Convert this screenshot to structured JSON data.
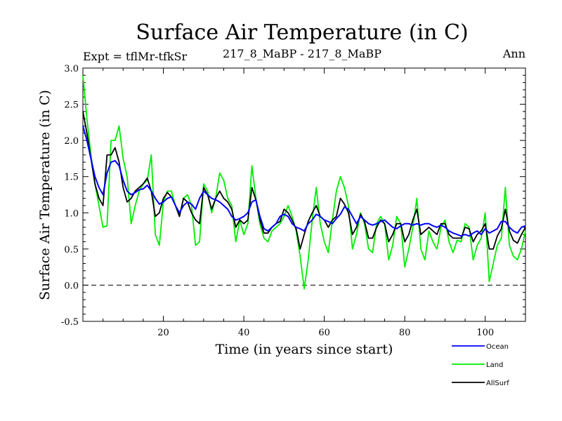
{
  "header": {
    "title": "Surface Air Temperature (in C)",
    "experiment": "Expt = tflMr-tfkSr",
    "subtitle": "217_8_MaBP - 217_8_MaBP",
    "period": "Ann"
  },
  "chart_data": {
    "type": "line",
    "title": "Surface Air Temperature (in C)",
    "xlabel": "Time (in years since start)",
    "ylabel": "Surface Air Temperature (in C)",
    "xlim": [
      0,
      110
    ],
    "ylim": [
      -0.5,
      3.0
    ],
    "xticks": [
      20,
      40,
      60,
      80,
      100
    ],
    "xtick_labels": [
      "20",
      "40",
      "60",
      "80",
      "100"
    ],
    "yticks": [
      -0.5,
      0.0,
      0.5,
      1.0,
      1.5,
      2.0,
      2.5,
      3.0
    ],
    "ytick_labels": [
      "-0.5",
      "0.0",
      "0.5",
      "1.0",
      "1.5",
      "2.0",
      "2.5",
      "3.0"
    ],
    "reference_line": 0.0,
    "legend_position": "bottom-right",
    "x": [
      0,
      1,
      2,
      3,
      4,
      5,
      6,
      7,
      8,
      9,
      10,
      11,
      12,
      13,
      14,
      15,
      16,
      17,
      18,
      19,
      20,
      21,
      22,
      23,
      24,
      25,
      26,
      27,
      28,
      29,
      30,
      31,
      32,
      33,
      34,
      35,
      36,
      37,
      38,
      39,
      40,
      41,
      42,
      43,
      44,
      45,
      46,
      47,
      48,
      49,
      50,
      51,
      52,
      53,
      54,
      55,
      56,
      57,
      58,
      59,
      60,
      61,
      62,
      63,
      64,
      65,
      66,
      67,
      68,
      69,
      70,
      71,
      72,
      73,
      74,
      75,
      76,
      77,
      78,
      79,
      80,
      81,
      82,
      83,
      84,
      85,
      86,
      87,
      88,
      89,
      90,
      91,
      92,
      93,
      94,
      95,
      96,
      97,
      98,
      99,
      100,
      101,
      102,
      103,
      104,
      105,
      106,
      107,
      108,
      109,
      110
    ],
    "series": [
      {
        "name": "Ocean",
        "color": "#0000ff",
        "values": [
          2.2,
          2.0,
          1.75,
          1.5,
          1.35,
          1.25,
          1.55,
          1.7,
          1.72,
          1.65,
          1.45,
          1.3,
          1.25,
          1.28,
          1.32,
          1.33,
          1.38,
          1.3,
          1.2,
          1.12,
          1.15,
          1.2,
          1.22,
          1.1,
          1.0,
          1.1,
          1.15,
          1.12,
          1.05,
          1.2,
          1.3,
          1.25,
          1.2,
          1.18,
          1.15,
          1.1,
          1.05,
          0.95,
          0.9,
          0.92,
          0.95,
          1.0,
          1.15,
          1.18,
          0.95,
          0.78,
          0.75,
          0.8,
          0.85,
          0.95,
          0.98,
          0.95,
          0.85,
          0.8,
          0.78,
          0.75,
          0.85,
          0.9,
          0.98,
          0.95,
          0.9,
          0.88,
          0.85,
          0.92,
          0.98,
          1.08,
          1.05,
          0.95,
          0.85,
          0.95,
          0.9,
          0.85,
          0.83,
          0.85,
          0.88,
          0.9,
          0.85,
          0.8,
          0.78,
          0.82,
          0.85,
          0.85,
          0.83,
          0.85,
          0.83,
          0.85,
          0.85,
          0.82,
          0.8,
          0.83,
          0.8,
          0.75,
          0.72,
          0.7,
          0.68,
          0.7,
          0.68,
          0.72,
          0.75,
          0.7,
          0.78,
          0.72,
          0.75,
          0.78,
          0.88,
          0.88,
          0.8,
          0.75,
          0.72,
          0.8,
          0.82
        ]
      },
      {
        "name": "Land",
        "color": "#00ee00",
        "values": [
          2.9,
          2.3,
          1.8,
          1.4,
          1.1,
          0.8,
          0.82,
          2.0,
          2.0,
          2.2,
          1.75,
          1.5,
          0.85,
          1.1,
          1.3,
          1.4,
          1.45,
          1.8,
          0.7,
          0.55,
          1.15,
          1.3,
          1.3,
          1.1,
          0.95,
          1.2,
          1.25,
          1.1,
          0.55,
          0.6,
          1.4,
          1.3,
          1.0,
          1.2,
          1.55,
          1.45,
          1.2,
          1.1,
          0.6,
          0.9,
          0.7,
          0.85,
          1.65,
          1.2,
          0.85,
          0.65,
          0.6,
          0.75,
          0.8,
          0.85,
          0.95,
          1.1,
          0.95,
          0.75,
          0.4,
          -0.05,
          0.35,
          0.9,
          1.35,
          0.85,
          0.6,
          0.45,
          0.9,
          1.3,
          1.5,
          1.35,
          1.1,
          0.5,
          0.7,
          1.0,
          0.85,
          0.5,
          0.45,
          0.85,
          0.95,
          0.85,
          0.35,
          0.55,
          0.95,
          0.85,
          0.25,
          0.5,
          0.8,
          1.2,
          0.5,
          0.35,
          0.75,
          0.6,
          0.5,
          0.8,
          0.9,
          0.6,
          0.45,
          0.62,
          0.6,
          0.85,
          0.8,
          0.35,
          0.55,
          0.65,
          1.0,
          0.05,
          0.3,
          0.55,
          0.65,
          1.35,
          0.55,
          0.4,
          0.35,
          0.5,
          0.75
        ]
      },
      {
        "name": "AllSurf",
        "color": "#000000",
        "values": [
          2.4,
          2.1,
          1.75,
          1.4,
          1.2,
          1.1,
          1.8,
          1.8,
          1.9,
          1.7,
          1.35,
          1.15,
          1.2,
          1.3,
          1.35,
          1.4,
          1.48,
          1.3,
          0.95,
          1.0,
          1.2,
          1.28,
          1.22,
          1.1,
          0.95,
          1.2,
          1.15,
          1.0,
          0.9,
          0.85,
          1.35,
          1.25,
          1.05,
          1.2,
          1.3,
          1.2,
          1.15,
          1.05,
          0.8,
          0.9,
          0.85,
          0.9,
          1.35,
          1.18,
          0.9,
          0.72,
          0.72,
          0.8,
          0.85,
          0.88,
          1.05,
          1.0,
          0.9,
          0.78,
          0.5,
          0.7,
          0.88,
          1.0,
          1.1,
          0.95,
          0.9,
          0.8,
          0.9,
          0.95,
          1.2,
          1.12,
          1.0,
          0.7,
          0.8,
          0.98,
          0.88,
          0.65,
          0.65,
          0.8,
          0.9,
          0.85,
          0.6,
          0.7,
          0.85,
          0.85,
          0.6,
          0.7,
          0.9,
          1.05,
          0.7,
          0.75,
          0.8,
          0.75,
          0.7,
          0.85,
          0.85,
          0.7,
          0.65,
          0.65,
          0.65,
          0.8,
          0.78,
          0.6,
          0.7,
          0.75,
          0.85,
          0.5,
          0.5,
          0.68,
          0.78,
          1.05,
          0.75,
          0.62,
          0.58,
          0.7,
          0.8
        ]
      }
    ]
  }
}
